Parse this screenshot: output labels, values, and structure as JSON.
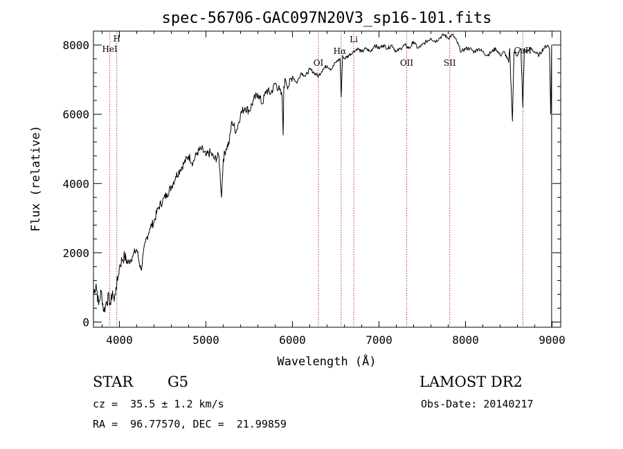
{
  "chart_data": {
    "type": "line",
    "title": "spec-56706-GAC097N20V3_sp16-101.fits",
    "xlabel": "Wavelength (Å)",
    "ylabel": "Flux (relative)",
    "xlim": [
      3700,
      9100
    ],
    "ylim": [
      -150,
      8400
    ],
    "x_ticks": [
      4000,
      5000,
      6000,
      7000,
      8000,
      9000
    ],
    "x_tick_labels": [
      "4000",
      "5000",
      "6000",
      "7000",
      "8000",
      "9000"
    ],
    "y_ticks": [
      0,
      2000,
      4000,
      6000,
      8000
    ],
    "y_tick_labels": [
      "0",
      "2000",
      "4000",
      "6000",
      "8000"
    ],
    "series": [
      {
        "name": "flux",
        "x": [
          3700,
          3730,
          3760,
          3790,
          3820,
          3850,
          3880,
          3900,
          3920,
          3940,
          3960,
          3980,
          4000,
          4030,
          4060,
          4100,
          4150,
          4200,
          4250,
          4300,
          4350,
          4400,
          4450,
          4500,
          4550,
          4600,
          4650,
          4700,
          4750,
          4800,
          4850,
          4900,
          4950,
          5000,
          5050,
          5100,
          5150,
          5180,
          5200,
          5230,
          5270,
          5300,
          5350,
          5400,
          5450,
          5500,
          5550,
          5600,
          5650,
          5700,
          5750,
          5800,
          5850,
          5880,
          5893,
          5900,
          5920,
          5950,
          6000,
          6050,
          6100,
          6150,
          6200,
          6250,
          6300,
          6350,
          6400,
          6450,
          6500,
          6550,
          6563,
          6580,
          6600,
          6650,
          6700,
          6750,
          6800,
          6850,
          6900,
          6950,
          7000,
          7050,
          7100,
          7150,
          7200,
          7250,
          7300,
          7350,
          7400,
          7450,
          7500,
          7550,
          7600,
          7650,
          7700,
          7750,
          7800,
          7850,
          7900,
          7950,
          8000,
          8050,
          8100,
          8150,
          8200,
          8250,
          8300,
          8350,
          8400,
          8450,
          8498,
          8510,
          8542,
          8560,
          8600,
          8640,
          8662,
          8680,
          8700,
          8750,
          8800,
          8850,
          8900,
          8950,
          8970,
          8985,
          8995
        ],
        "values": [
          800,
          1100,
          500,
          900,
          300,
          600,
          700,
          500,
          900,
          600,
          1000,
          1200,
          1600,
          1800,
          1900,
          1700,
          1900,
          2100,
          1500,
          2300,
          2700,
          2900,
          3300,
          3500,
          3700,
          3900,
          4200,
          4400,
          4600,
          4800,
          4600,
          4900,
          5000,
          4800,
          4900,
          4700,
          4800,
          3600,
          4700,
          5000,
          5200,
          5800,
          5500,
          6000,
          6200,
          6100,
          6400,
          6600,
          6300,
          6700,
          6600,
          6900,
          6700,
          6500,
          5400,
          6800,
          7000,
          6800,
          7100,
          6900,
          7200,
          7100,
          7300,
          7200,
          7100,
          7300,
          7400,
          7300,
          7500,
          7600,
          6500,
          7700,
          7600,
          7700,
          7800,
          7900,
          7800,
          7900,
          7800,
          8000,
          7900,
          8000,
          7900,
          8000,
          7800,
          7900,
          8000,
          7900,
          8100,
          7900,
          8000,
          8100,
          8200,
          8100,
          8200,
          8300,
          8200,
          8300,
          8100,
          7800,
          7900,
          7900,
          7800,
          7900,
          7800,
          7700,
          7800,
          7900,
          7700,
          7800,
          7500,
          7900,
          5800,
          7800,
          7700,
          7900,
          6200,
          7900,
          7800,
          7900,
          7800,
          7700,
          7900,
          8000,
          7900,
          6000,
          8000
        ]
      }
    ],
    "spectral_lines": [
      {
        "label": "HeI",
        "x": 3889
      },
      {
        "label": "H",
        "x": 3970
      },
      {
        "label": "OI",
        "x": 6300
      },
      {
        "label": "Hα",
        "x": 6563
      },
      {
        "label": "Li",
        "x": 6708
      },
      {
        "label": "OII",
        "x": 7320
      },
      {
        "label": "SII",
        "x": 7818
      },
      {
        "label": "CaII",
        "x": 8662
      }
    ]
  },
  "info": {
    "object_class": "STAR",
    "subclass": "G5",
    "survey": "LAMOST DR2",
    "redshift": "cz =  35.5 ± 1.2 km/s",
    "obs_date": "Obs-Date: 20140217",
    "coords": "RA =  96.77570, DEC =  21.99859"
  },
  "colors": {
    "line": "#000000",
    "marker": "#b03030",
    "background": "#ffffff"
  }
}
